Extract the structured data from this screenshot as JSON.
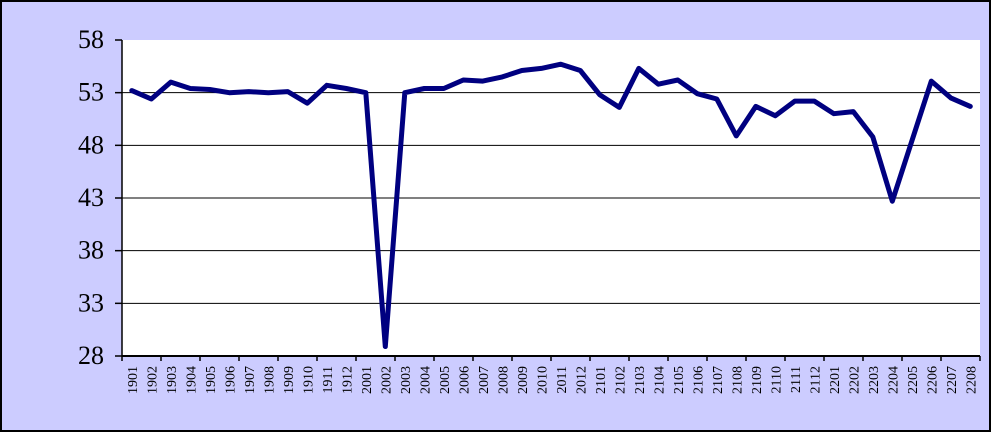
{
  "chart_data": {
    "type": "line",
    "title": "",
    "xlabel": "",
    "ylabel": "",
    "categories": [
      "1901",
      "1902",
      "1903",
      "1904",
      "1905",
      "1906",
      "1907",
      "1908",
      "1909",
      "1910",
      "1911",
      "1912",
      "2001",
      "2002",
      "2003",
      "2004",
      "2005",
      "2006",
      "2007",
      "2008",
      "2009",
      "2010",
      "2011",
      "2012",
      "2101",
      "2102",
      "2103",
      "2104",
      "2105",
      "2106",
      "2107",
      "2108",
      "2109",
      "2110",
      "2111",
      "2112",
      "2201",
      "2202",
      "2203",
      "2204",
      "2205",
      "2206",
      "2207",
      "2208"
    ],
    "values": [
      53.2,
      52.4,
      54.0,
      53.4,
      53.3,
      53.0,
      53.1,
      53.0,
      53.1,
      52.0,
      53.7,
      53.4,
      53.0,
      28.9,
      53.0,
      53.4,
      53.4,
      54.2,
      54.1,
      54.5,
      55.1,
      55.3,
      55.7,
      55.1,
      52.8,
      51.6,
      55.3,
      53.8,
      54.2,
      52.9,
      52.4,
      48.9,
      51.7,
      50.8,
      52.2,
      52.2,
      51.0,
      51.2,
      48.8,
      42.7,
      48.4,
      54.1,
      52.5,
      51.7
    ],
    "ylim": [
      28,
      58
    ],
    "y_ticks": [
      28,
      33,
      38,
      43,
      48,
      53,
      58
    ],
    "grid": true,
    "legend": false,
    "colors": {
      "line": "#000080",
      "chart_background": "#CCCCFF",
      "plot_background": "#FFFFFF",
      "gridline": "#000000",
      "axis": "#000000",
      "text": "#000000",
      "frame_border": "#000000"
    }
  }
}
